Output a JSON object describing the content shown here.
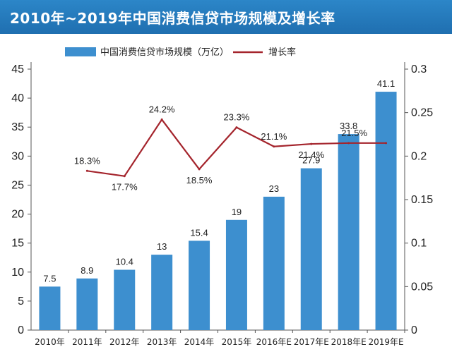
{
  "header": {
    "title": "2010年~2019年中国消费信贷市场规模及增长率"
  },
  "chart_data": {
    "type": "bar",
    "categories": [
      "2010年",
      "2011年",
      "2012年",
      "2013年",
      "2014年",
      "2015年",
      "2016年E",
      "2017年E",
      "2018年E",
      "2019年E"
    ],
    "series": [
      {
        "name": "中国消费信贷市场规模（万亿）",
        "type": "bar",
        "axis": "left",
        "values": [
          7.5,
          8.9,
          10.4,
          13,
          15.4,
          19,
          23,
          27.9,
          33.8,
          41.1
        ],
        "labels": [
          "7.5",
          "8.9",
          "10.4",
          "13",
          "15.4",
          "19",
          "23",
          "27.9",
          "33.8",
          "41.1"
        ],
        "color": "#3d8fcf"
      },
      {
        "name": "增长率",
        "type": "line",
        "axis": "right",
        "values": [
          null,
          0.183,
          0.177,
          0.242,
          0.185,
          0.233,
          0.211,
          0.214,
          0.215,
          0.215
        ],
        "labels": [
          "",
          "18.3%",
          "17.7%",
          "24.2%",
          "18.5%",
          "23.3%",
          "21.1%",
          "21.4%",
          "21.5%",
          ""
        ],
        "color": "#a4242c"
      }
    ],
    "y_left": {
      "ylim": [
        0,
        45
      ],
      "ticks": [
        0,
        5,
        10,
        15,
        20,
        25,
        30,
        35,
        40,
        45
      ]
    },
    "y_right": {
      "ylim": [
        0,
        0.3
      ],
      "ticks": [
        "0",
        "0.05",
        "0.1",
        "0.15",
        "0.2",
        "0.25",
        "0.3"
      ]
    },
    "grid": false,
    "legend": "top"
  }
}
